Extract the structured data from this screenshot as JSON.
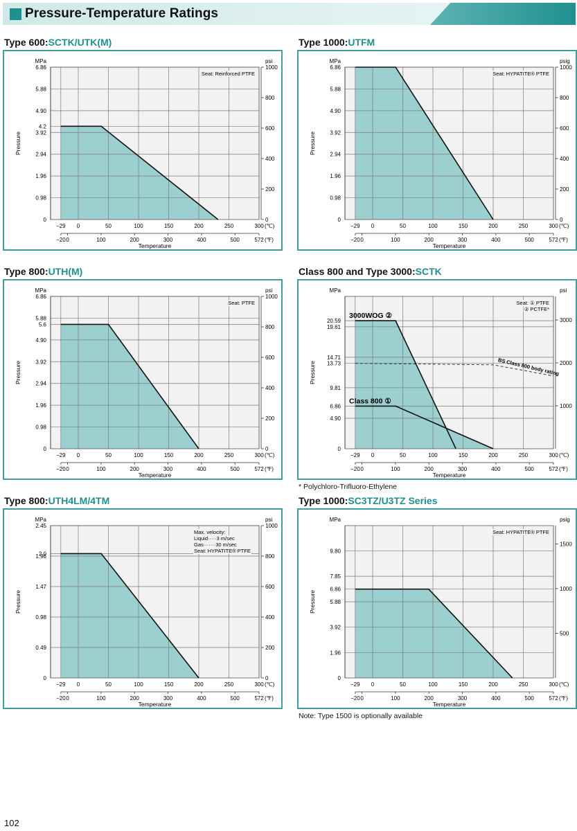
{
  "header": {
    "title": "Pressure-Temperature Ratings"
  },
  "page_number": "102",
  "notes": {
    "pctfe": "* Polychloro-Trifluoro-Ethylene",
    "type1500": "Note: Type 1500 is optionally available"
  },
  "colors": {
    "accent": "#1f9090",
    "fill": "#9ccfcf",
    "frame": "#3aa0a0",
    "plot_bg": "#f2f2f2"
  },
  "chart_data": [
    {
      "type": "area",
      "title_prefix": "Type 600",
      "title_model": "SCTK/UTK(M)",
      "ylabel": "Pressure",
      "xlabel": "Temperature",
      "left_unit": "MPa",
      "right_unit": "psi",
      "left_ticks": [
        {
          "v": 6.86,
          "t": "6.86"
        },
        {
          "v": 5.88,
          "t": "5.88"
        },
        {
          "v": 4.9,
          "t": "4.90"
        },
        {
          "v": 4.2,
          "t": "4.2"
        },
        {
          "v": 3.92,
          "t": "3.92"
        },
        {
          "v": 2.94,
          "t": "2.94"
        },
        {
          "v": 1.96,
          "t": "1.96"
        },
        {
          "v": 0.98,
          "t": "0.98"
        },
        {
          "v": 0,
          "t": "0"
        }
      ],
      "right_ticks": [
        {
          "v": 1000,
          "t": "1000"
        },
        {
          "v": 800,
          "t": "800"
        },
        {
          "v": 600,
          "t": "600"
        },
        {
          "v": 400,
          "t": "400"
        },
        {
          "v": 200,
          "t": "200"
        },
        {
          "v": 0,
          "t": "0"
        }
      ],
      "annotations": [
        {
          "text": "Seat: Reinforced PTFE"
        }
      ],
      "series": [
        {
          "x": [
            -29,
            38,
            232
          ],
          "y": [
            4.2,
            4.2,
            0
          ]
        }
      ]
    },
    {
      "type": "area",
      "title_prefix": "Type 1000",
      "title_model": "UTFM",
      "ylabel": "Pressure",
      "xlabel": "Temperature",
      "left_unit": "MPa",
      "right_unit": "psig",
      "left_ticks": [
        {
          "v": 6.86,
          "t": "6.86"
        },
        {
          "v": 5.88,
          "t": "5.88"
        },
        {
          "v": 4.9,
          "t": "4.90"
        },
        {
          "v": 3.92,
          "t": "3.92"
        },
        {
          "v": 2.94,
          "t": "2.94"
        },
        {
          "v": 1.96,
          "t": "1.96"
        },
        {
          "v": 0.98,
          "t": "0.98"
        },
        {
          "v": 0,
          "t": "0"
        }
      ],
      "right_ticks": [
        {
          "v": 1000,
          "t": "1000"
        },
        {
          "v": 800,
          "t": "800"
        },
        {
          "v": 600,
          "t": "600"
        },
        {
          "v": 400,
          "t": "400"
        },
        {
          "v": 200,
          "t": "200"
        },
        {
          "v": 0,
          "t": "0"
        }
      ],
      "annotations": [
        {
          "text": "Seat: HYPATITE® PTFE"
        }
      ],
      "series": [
        {
          "x": [
            -29,
            38,
            200
          ],
          "y": [
            6.86,
            6.86,
            0
          ]
        }
      ]
    },
    {
      "type": "area",
      "title_prefix": "Type 800",
      "title_model": "UTH(M)",
      "ylabel": "Pressure",
      "xlabel": "Temperature",
      "left_unit": "MPa",
      "right_unit": "psi",
      "left_ticks": [
        {
          "v": 6.86,
          "t": "6.86"
        },
        {
          "v": 5.88,
          "t": "5.88"
        },
        {
          "v": 5.6,
          "t": "5.6"
        },
        {
          "v": 4.9,
          "t": "4.90"
        },
        {
          "v": 3.92,
          "t": "3.92"
        },
        {
          "v": 2.94,
          "t": "2.94"
        },
        {
          "v": 1.96,
          "t": "1.96"
        },
        {
          "v": 0.98,
          "t": "0.98"
        },
        {
          "v": 0,
          "t": "0"
        }
      ],
      "right_ticks": [
        {
          "v": 1000,
          "t": "1000"
        },
        {
          "v": 800,
          "t": "800"
        },
        {
          "v": 600,
          "t": "600"
        },
        {
          "v": 400,
          "t": "400"
        },
        {
          "v": 200,
          "t": "200"
        },
        {
          "v": 0,
          "t": "0"
        }
      ],
      "annotations": [
        {
          "text": "Seat: PTFE"
        }
      ],
      "series": [
        {
          "x": [
            -29,
            50,
            200
          ],
          "y": [
            5.6,
            5.6,
            0
          ]
        }
      ]
    },
    {
      "type": "area",
      "title_prefix": "Class 800 and Type 3000",
      "title_model": "SCTK",
      "ylabel": "Pressure",
      "xlabel": "Temperature",
      "left_unit": "MPa",
      "right_unit": "psi",
      "ymax": 24.5,
      "rmax": 3550,
      "left_ticks": [
        {
          "v": 20.59,
          "t": "20.59"
        },
        {
          "v": 19.61,
          "t": "19.61"
        },
        {
          "v": 14.71,
          "t": "14.71"
        },
        {
          "v": 13.73,
          "t": "13.73"
        },
        {
          "v": 9.81,
          "t": "9.81"
        },
        {
          "v": 6.86,
          "t": "6.86"
        },
        {
          "v": 4.9,
          "t": "4.90"
        },
        {
          "v": 0,
          "t": "0"
        }
      ],
      "right_ticks": [
        {
          "v": 3000,
          "t": "3000"
        },
        {
          "v": 2000,
          "t": "2000"
        },
        {
          "v": 1000,
          "t": "1000"
        }
      ],
      "annotations": [
        {
          "text": "Seat: ① PTFE"
        },
        {
          "text": "② PCTFE*"
        }
      ],
      "bs_rating": {
        "label": "BS Class 800 body rating",
        "x": [
          -29,
          200,
          300
        ],
        "y": [
          13.73,
          13.5,
          11.7
        ]
      },
      "series": [
        {
          "name": "3000WOG ②",
          "x": [
            -29,
            38,
            138
          ],
          "y": [
            20.59,
            20.59,
            0
          ]
        },
        {
          "name": "Class 800 ①",
          "x": [
            -29,
            38,
            200
          ],
          "y": [
            6.86,
            6.86,
            0
          ]
        }
      ]
    },
    {
      "type": "area",
      "title_prefix": "Type 800",
      "title_model": "UTH4LM/4TM",
      "ylabel": "Pressure",
      "xlabel": "Temperature",
      "left_unit": "MPa",
      "right_unit": "psi",
      "ymax": 2.45,
      "left_ticks": [
        {
          "v": 2.45,
          "t": "2.45"
        },
        {
          "v": 2.0,
          "t": "2.0"
        },
        {
          "v": 1.96,
          "t": "1.96"
        },
        {
          "v": 1.47,
          "t": "1.47"
        },
        {
          "v": 0.98,
          "t": "0.98"
        },
        {
          "v": 0.49,
          "t": "0.49"
        },
        {
          "v": 0,
          "t": "0"
        }
      ],
      "right_ticks": [
        {
          "v": 1000,
          "t": "1000"
        },
        {
          "v": 800,
          "t": "800"
        },
        {
          "v": 600,
          "t": "600"
        },
        {
          "v": 400,
          "t": "400"
        },
        {
          "v": 200,
          "t": "200"
        },
        {
          "v": 0,
          "t": "0"
        }
      ],
      "annotations": [
        {
          "text": "Max. velocity:"
        },
        {
          "text": "Liquid·····3 m/sec"
        },
        {
          "text": "Gas·······30 m/sec"
        },
        {
          "text": "Seat: HYPATITE® PTFE"
        }
      ],
      "series": [
        {
          "x": [
            -29,
            38,
            200
          ],
          "y": [
            2.0,
            2.0,
            0
          ]
        }
      ]
    },
    {
      "type": "area",
      "title_prefix": "Type 1000",
      "title_model": "SC3TZ/U3TZ Series",
      "ylabel": "Pressure",
      "xlabel": "Temperature",
      "left_unit": "MPa",
      "right_unit": "psig",
      "ymax": 11.76,
      "rmax": 1705,
      "left_ticks": [
        {
          "v": 9.8,
          "t": "9.80"
        },
        {
          "v": 7.85,
          "t": "7.85"
        },
        {
          "v": 6.86,
          "t": "6.86"
        },
        {
          "v": 5.88,
          "t": "5.88"
        },
        {
          "v": 3.92,
          "t": "3.92"
        },
        {
          "v": 1.96,
          "t": "1.96"
        },
        {
          "v": 0,
          "t": "0"
        }
      ],
      "right_ticks": [
        {
          "v": 1500,
          "t": "1500"
        },
        {
          "v": 1000,
          "t": "1000"
        },
        {
          "v": 500,
          "t": "500"
        }
      ],
      "annotations": [
        {
          "text": "Seat: HYPATITE® PTFE"
        }
      ],
      "series": [
        {
          "x": [
            -29,
            93,
            232
          ],
          "y": [
            6.86,
            6.86,
            0
          ]
        }
      ]
    }
  ],
  "temperature_axis": {
    "celsius_unit": "(℃)",
    "fahrenheit_unit": "(℉)",
    "celsius_ticks": [
      {
        "v": -29,
        "t": "−29"
      },
      {
        "v": 0,
        "t": "0"
      },
      {
        "v": 50,
        "t": "50"
      },
      {
        "v": 100,
        "t": "100"
      },
      {
        "v": 150,
        "t": "150"
      },
      {
        "v": 200,
        "t": "200"
      },
      {
        "v": 250,
        "t": "250"
      },
      {
        "v": 300,
        "t": "300"
      }
    ],
    "fahrenheit_ticks": [
      {
        "v": -20,
        "t": "−20"
      },
      {
        "v": 0,
        "t": "0"
      },
      {
        "v": 100,
        "t": "100"
      },
      {
        "v": 200,
        "t": "200"
      },
      {
        "v": 300,
        "t": "300"
      },
      {
        "v": 400,
        "t": "400"
      },
      {
        "v": 500,
        "t": "500"
      },
      {
        "v": 572,
        "t": "572"
      }
    ]
  }
}
